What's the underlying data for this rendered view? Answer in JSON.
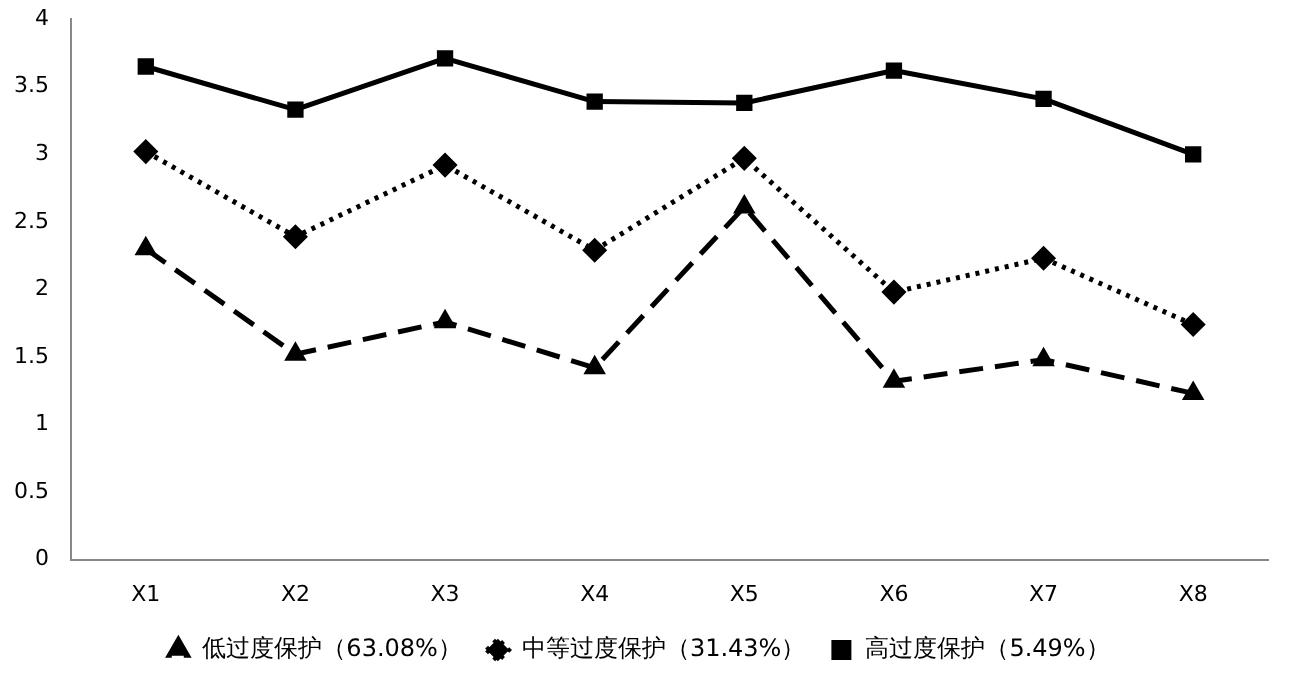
{
  "chart_data": {
    "type": "line",
    "categories": [
      "X1",
      "X2",
      "X3",
      "X4",
      "X5",
      "X6",
      "X7",
      "X8"
    ],
    "series": [
      {
        "name": "低过度保护（63.08%）",
        "color": "#000000",
        "marker": "triangle",
        "line_style": "dashed",
        "values": [
          2.3,
          1.52,
          1.76,
          1.42,
          2.61,
          1.32,
          1.48,
          1.23
        ]
      },
      {
        "name": "中等过度保护（31.43%）",
        "color": "#000000",
        "marker": "diamond",
        "line_style": "dotted",
        "values": [
          3.02,
          2.39,
          2.92,
          2.29,
          2.97,
          1.98,
          2.23,
          1.74
        ]
      },
      {
        "name": "高过度保护（5.49%）",
        "color": "#000000",
        "marker": "square",
        "line_style": "solid",
        "values": [
          3.65,
          3.33,
          3.71,
          3.39,
          3.38,
          3.62,
          3.41,
          3.0
        ]
      }
    ],
    "ylim": [
      0,
      4
    ],
    "yticks": [
      0,
      0.5,
      1,
      1.5,
      2,
      2.5,
      3,
      3.5,
      4
    ],
    "grid": false,
    "legend": "bottom"
  }
}
